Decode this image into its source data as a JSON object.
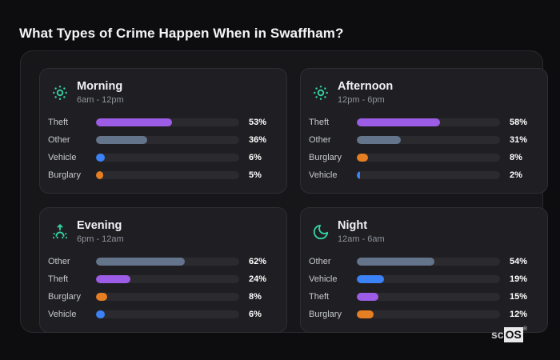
{
  "page": {
    "title": "What Types of Crime Happen When in Swaffham?"
  },
  "watermark": {
    "prefix": "sc",
    "brand": "OS",
    "registered": "®"
  },
  "colors": {
    "page_bg": "#0d0d0f",
    "board_bg": "#17171a",
    "panel_bg": "#1f1f23",
    "track": "#2a2a2f",
    "accent_teal": "#34d39e",
    "bar_purple": "#9d5ce5",
    "bar_slate": "#64748b",
    "bar_blue": "#3b82f6",
    "bar_orange": "#e67e22"
  },
  "chart_data": [
    {
      "type": "bar",
      "orientation": "horizontal",
      "title": "Morning",
      "subtitle": "6am - 12pm",
      "icon": "sun-icon",
      "categories": [
        "Theft",
        "Other",
        "Vehicle",
        "Burglary"
      ],
      "values": [
        53,
        36,
        6,
        5
      ],
      "value_labels": [
        "53%",
        "36%",
        "6%",
        "5%"
      ],
      "bar_colors": [
        "#9d5ce5",
        "#64748b",
        "#3b82f6",
        "#e67e22"
      ],
      "xlim": [
        0,
        100
      ],
      "unit": "%"
    },
    {
      "type": "bar",
      "orientation": "horizontal",
      "title": "Afternoon",
      "subtitle": "12pm - 6pm",
      "icon": "sun-icon",
      "categories": [
        "Theft",
        "Other",
        "Burglary",
        "Vehicle"
      ],
      "values": [
        58,
        31,
        8,
        2
      ],
      "value_labels": [
        "58%",
        "31%",
        "8%",
        "2%"
      ],
      "bar_colors": [
        "#9d5ce5",
        "#64748b",
        "#e67e22",
        "#3b82f6"
      ],
      "xlim": [
        0,
        100
      ],
      "unit": "%"
    },
    {
      "type": "bar",
      "orientation": "horizontal",
      "title": "Evening",
      "subtitle": "6pm - 12am",
      "icon": "sunrise-icon",
      "categories": [
        "Other",
        "Theft",
        "Burglary",
        "Vehicle"
      ],
      "values": [
        62,
        24,
        8,
        6
      ],
      "value_labels": [
        "62%",
        "24%",
        "8%",
        "6%"
      ],
      "bar_colors": [
        "#64748b",
        "#9d5ce5",
        "#e67e22",
        "#3b82f6"
      ],
      "xlim": [
        0,
        100
      ],
      "unit": "%"
    },
    {
      "type": "bar",
      "orientation": "horizontal",
      "title": "Night",
      "subtitle": "12am - 6am",
      "icon": "moon-icon",
      "categories": [
        "Other",
        "Vehicle",
        "Theft",
        "Burglary"
      ],
      "values": [
        54,
        19,
        15,
        12
      ],
      "value_labels": [
        "54%",
        "19%",
        "15%",
        "12%"
      ],
      "bar_colors": [
        "#64748b",
        "#3b82f6",
        "#9d5ce5",
        "#e67e22"
      ],
      "xlim": [
        0,
        100
      ],
      "unit": "%"
    }
  ]
}
